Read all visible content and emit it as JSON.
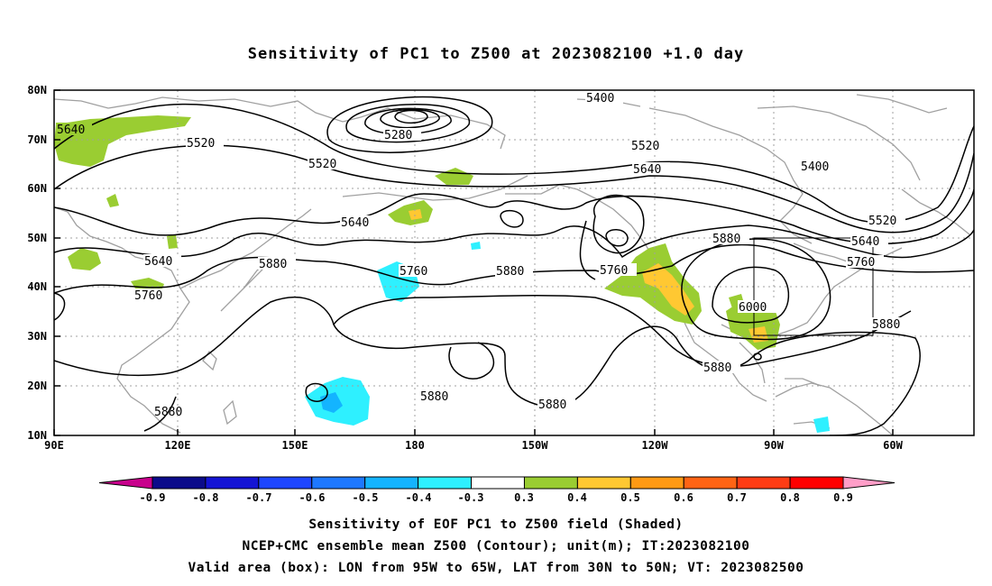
{
  "title": "Sensitivity of PC1 to Z500 at 2023082100 +1.0 day",
  "map": {
    "lon_labels": [
      "90E",
      "120E",
      "150E",
      "180",
      "150W",
      "120W",
      "90W",
      "60W"
    ],
    "lat_labels": [
      "80N",
      "70N",
      "60N",
      "50N",
      "40N",
      "30N",
      "20N",
      "10N"
    ],
    "contour_labels": [
      "5640",
      "5520",
      "5520",
      "5280",
      "5400",
      "5520",
      "5640",
      "5400",
      "5640",
      "5520",
      "5880",
      "5640",
      "5760",
      "5640",
      "5760",
      "5880",
      "5760",
      "5880",
      "5760",
      "6000",
      "5880",
      "5880",
      "5880",
      "5880"
    ]
  },
  "colorbar": {
    "labels": [
      "-0.9",
      "-0.8",
      "-0.7",
      "-0.6",
      "-0.5",
      "-0.4",
      "-0.3",
      "0.3",
      "0.4",
      "0.5",
      "0.6",
      "0.7",
      "0.8",
      "0.9"
    ],
    "colors": [
      "#0b0b8a",
      "#1414d4",
      "#1e46ff",
      "#1e78ff",
      "#14b4ff",
      "#2ef0ff",
      "#ffffff",
      "#9acd32",
      "#ffc832",
      "#ff9a14",
      "#ff6414",
      "#ff3c14",
      "#ff0000"
    ],
    "left_arrow_color": "#c8008c",
    "right_arrow_color": "#ff9ec8"
  },
  "captions": [
    "Sensitivity of EOF PC1 to Z500 field (Shaded)",
    "NCEP+CMC ensemble mean Z500 (Contour); unit(m); IT:2023082100",
    "Valid area (box): LON from 95W to 65W, LAT from 30N to 50N; VT: 2023082500"
  ]
}
